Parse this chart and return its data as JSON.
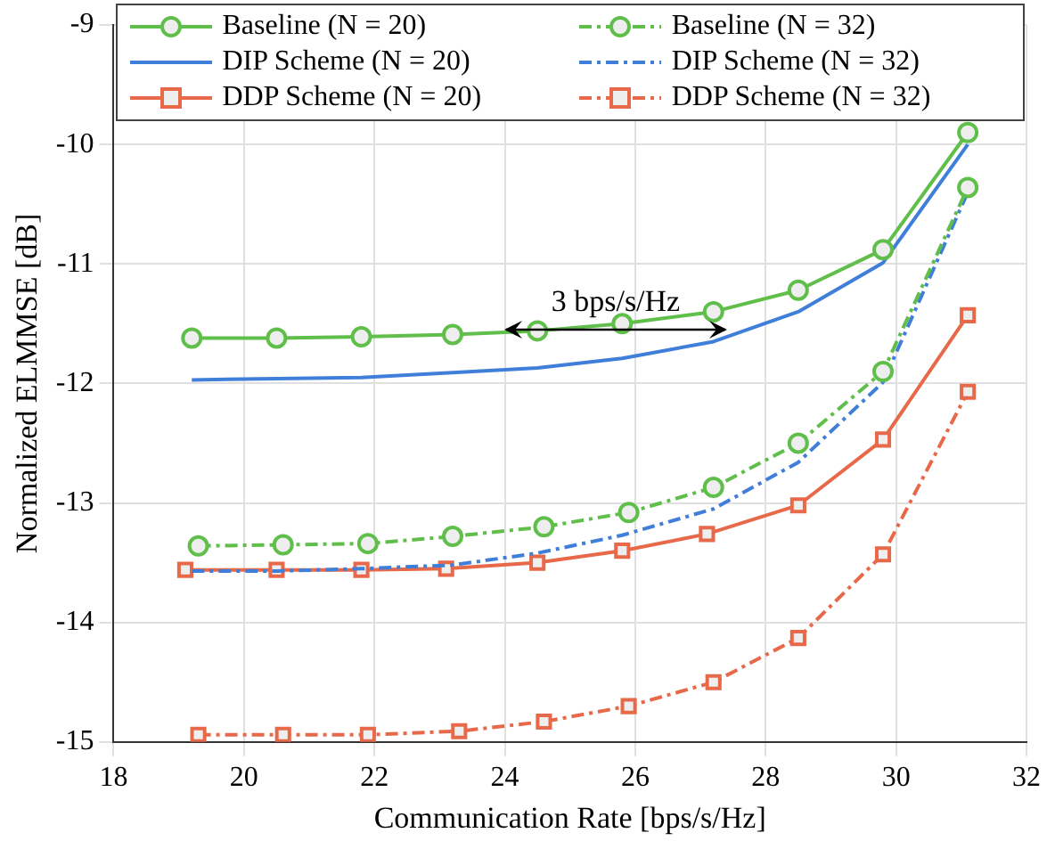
{
  "chart_data": {
    "type": "line",
    "xlabel": "Communication Rate [bps/s/Hz]",
    "ylabel": "Normalized ELMMSE [dB]",
    "xlim": [
      18,
      32
    ],
    "xticks": [
      18,
      20,
      22,
      24,
      26,
      28,
      30,
      32
    ],
    "ylim": [
      -15,
      -9
    ],
    "yticks": [
      -15,
      -14,
      -13,
      -12,
      -11,
      -10,
      -9
    ],
    "grid": true,
    "legend": "top",
    "annotations": [
      {
        "text": "3 bps/s/Hz",
        "x": 25.7,
        "y": -11.45
      }
    ],
    "series": [
      {
        "name": "Baseline (N = 20)",
        "color": "#5fbf4a",
        "marker": "circle",
        "line_style": "solid",
        "x": [
          19.2,
          20.5,
          21.8,
          23.2,
          24.5,
          25.8,
          27.2,
          28.5,
          29.8,
          31.1
        ],
        "values": [
          -11.62,
          -11.62,
          -11.61,
          -11.59,
          -11.56,
          -11.5,
          -11.4,
          -11.22,
          -10.88,
          -9.9
        ]
      },
      {
        "name": "Baseline (N = 32)",
        "color": "#5fbf4a",
        "marker": "circle",
        "line_style": "dashed",
        "x": [
          19.3,
          20.6,
          21.9,
          23.2,
          24.6,
          25.9,
          27.2,
          28.5,
          29.8,
          31.1
        ],
        "values": [
          -13.36,
          -13.35,
          -13.34,
          -13.28,
          -13.2,
          -13.08,
          -12.87,
          -12.5,
          -11.9,
          -10.36
        ]
      },
      {
        "name": "DIP Scheme (N = 20)",
        "color": "#3f7fd9",
        "marker": "none",
        "line_style": "solid",
        "x": [
          19.2,
          20.5,
          21.8,
          23.2,
          24.5,
          25.8,
          27.2,
          28.5,
          29.8,
          31.1
        ],
        "values": [
          -11.97,
          -11.96,
          -11.95,
          -11.91,
          -11.87,
          -11.79,
          -11.65,
          -11.4,
          -10.99,
          -10.0
        ]
      },
      {
        "name": "DIP Scheme (N = 32)",
        "color": "#3f7fd9",
        "marker": "none",
        "line_style": "dashed",
        "x": [
          19.2,
          20.5,
          21.8,
          23.2,
          24.5,
          25.8,
          27.2,
          28.5,
          29.8,
          31.1
        ],
        "values": [
          -13.57,
          -13.57,
          -13.55,
          -13.52,
          -13.42,
          -13.27,
          -13.05,
          -12.66,
          -11.99,
          -10.4
        ]
      },
      {
        "name": "DDP Scheme (N = 20)",
        "color": "#e8694a",
        "marker": "square",
        "line_style": "solid",
        "x": [
          19.1,
          20.5,
          21.8,
          23.1,
          24.5,
          25.8,
          27.1,
          28.5,
          29.8,
          31.1
        ],
        "values": [
          -13.56,
          -13.56,
          -13.56,
          -13.55,
          -13.5,
          -13.4,
          -13.26,
          -13.02,
          -12.47,
          -11.43
        ]
      },
      {
        "name": "DDP Scheme (N = 32)",
        "color": "#e8694a",
        "marker": "square",
        "line_style": "dashed",
        "x": [
          19.3,
          20.6,
          21.9,
          23.3,
          24.6,
          25.9,
          27.2,
          28.5,
          29.8,
          31.1
        ],
        "values": [
          -14.94,
          -14.94,
          -14.94,
          -14.91,
          -14.83,
          -14.7,
          -14.5,
          -14.13,
          -13.43,
          -12.07
        ]
      }
    ]
  }
}
